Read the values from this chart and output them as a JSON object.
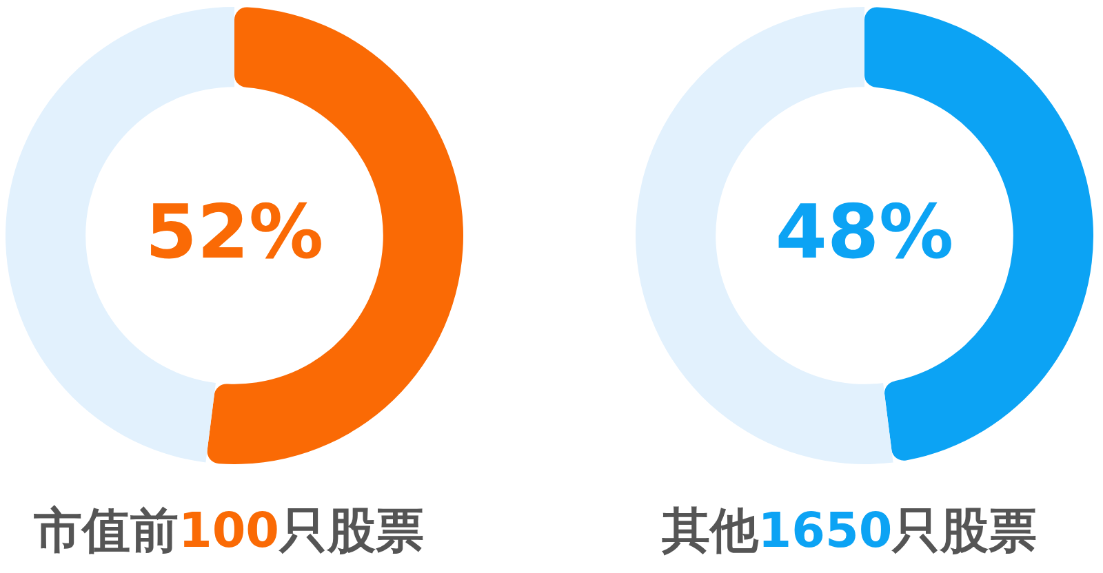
{
  "chart_data": [
    {
      "type": "donut",
      "title": "市值前100只股票",
      "categories": [
        null,
        null
      ],
      "values": [
        52,
        48
      ],
      "colors": [
        "#fa6a05",
        "#e2f1fd"
      ],
      "value_labels": [
        "52%",
        null
      ]
    },
    {
      "type": "donut",
      "title": "其他1650只股票",
      "categories": [
        null,
        null
      ],
      "values": [
        48,
        52
      ],
      "colors": [
        "#0ca3f4",
        "#e2f1fd"
      ],
      "value_labels": [
        "48%",
        null
      ]
    }
  ]
}
